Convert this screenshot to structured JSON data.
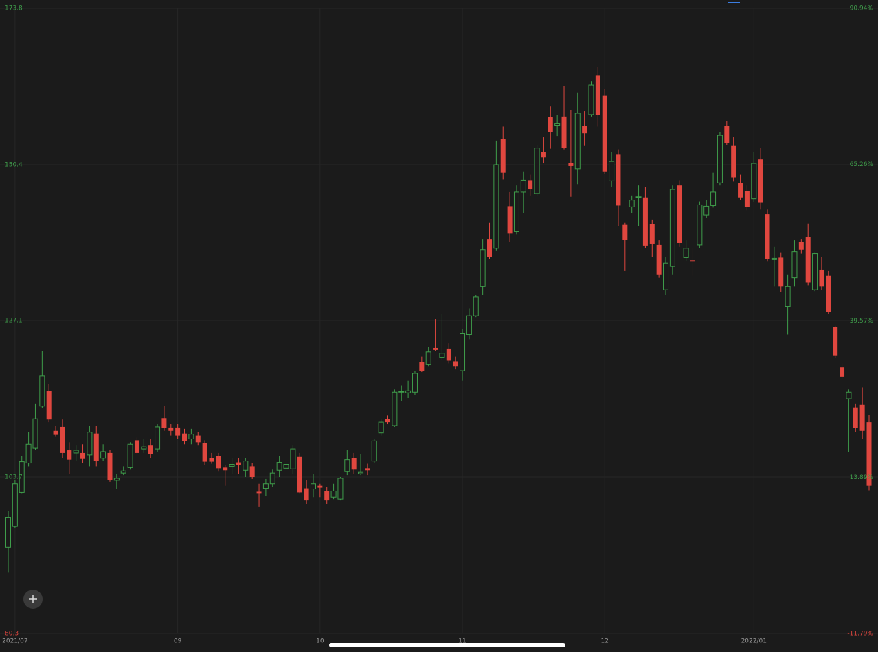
{
  "chart_data": {
    "type": "candlestick",
    "categories": [
      null,
      "2021/07",
      null,
      null,
      null,
      null,
      null,
      null,
      null,
      null,
      null,
      null,
      null,
      null,
      null,
      null,
      null,
      null,
      null,
      null,
      null,
      null,
      null,
      null,
      null,
      "09",
      null,
      null,
      null,
      null,
      null,
      null,
      null,
      null,
      null,
      null,
      null,
      null,
      null,
      null,
      null,
      null,
      null,
      null,
      null,
      null,
      "10",
      null,
      null,
      null,
      null,
      null,
      null,
      null,
      null,
      null,
      null,
      null,
      null,
      null,
      null,
      null,
      null,
      null,
      null,
      null,
      null,
      "11",
      null,
      null,
      null,
      null,
      null,
      null,
      null,
      null,
      null,
      null,
      null,
      null,
      null,
      null,
      null,
      null,
      null,
      null,
      null,
      null,
      "12",
      null,
      null,
      null,
      null,
      null,
      null,
      null,
      null,
      null,
      null,
      null,
      null,
      null,
      null,
      null,
      null,
      null,
      null,
      null,
      null,
      null,
      "2022/01",
      null,
      null,
      null,
      null,
      null,
      null,
      null,
      null,
      null,
      null,
      null,
      null,
      null,
      null,
      null,
      null,
      null
    ],
    "open": [
      93.2,
      96.3,
      101.4,
      105.8,
      108.0,
      114.3,
      116.6,
      110.6,
      111.2,
      107.7,
      107.3,
      107.3,
      107.0,
      110.2,
      106.5,
      107.3,
      103.2,
      104.3,
      105.1,
      109.2,
      107.9,
      108.4,
      107.9,
      112.5,
      111.1,
      111.1,
      110.2,
      109.4,
      109.9,
      108.8,
      106.5,
      106.8,
      105.1,
      105.3,
      105.9,
      104.7,
      105.3,
      101.5,
      102.0,
      102.7,
      104.7,
      105.0,
      104.9,
      106.7,
      102.0,
      101.9,
      102.4,
      101.6,
      100.7,
      100.4,
      104.5,
      106.5,
      104.2,
      105.0,
      106.1,
      110.3,
      112.4,
      111.4,
      116.4,
      116.3,
      116.4,
      120.9,
      120.5,
      123.0,
      121.6,
      122.9,
      121.0,
      119.6,
      125.0,
      127.8,
      132.2,
      139.3,
      137.9,
      154.3,
      144.2,
      140.4,
      146.3,
      148.1,
      146.1,
      152.3,
      157.5,
      156.3,
      157.6,
      150.7,
      149.8,
      156.2,
      157.9,
      163.7,
      160.7,
      148.0,
      151.9,
      141.4,
      144.1,
      145.5,
      145.5,
      141.5,
      138.4,
      131.7,
      135.2,
      147.3,
      136.5,
      136.1,
      138.4,
      142.9,
      144.3,
      147.7,
      156.2,
      153.2,
      147.7,
      146.5,
      145.3,
      151.2,
      143.0,
      136.2,
      136.5,
      129.2,
      133.5,
      138.9,
      139.6,
      131.7,
      134.7,
      133.8,
      126.1,
      120.1,
      115.4,
      114.1,
      114.5,
      111.9
    ],
    "high": [
      98.6,
      103.2,
      106.8,
      110.4,
      114.7,
      122.5,
      117.6,
      111.4,
      112.3,
      108.9,
      108.4,
      108.6,
      111.4,
      111.4,
      108.6,
      107.8,
      104.2,
      105.3,
      108.9,
      109.6,
      109.4,
      109.4,
      111.6,
      114.3,
      111.6,
      111.6,
      110.9,
      110.9,
      110.4,
      109.2,
      107.3,
      107.3,
      105.5,
      106.5,
      106.5,
      106.5,
      105.8,
      102.7,
      103.4,
      104.8,
      106.8,
      106.5,
      108.4,
      107.3,
      103.2,
      104.2,
      102.7,
      102.2,
      102.7,
      103.7,
      107.8,
      107.3,
      107.1,
      105.7,
      109.4,
      112.3,
      112.9,
      116.8,
      117.4,
      118.1,
      119.6,
      121.7,
      123.2,
      127.3,
      128.1,
      123.7,
      121.7,
      125.8,
      128.9,
      130.9,
      139.3,
      141.7,
      154.0,
      156.1,
      146.3,
      147.3,
      149.4,
      148.9,
      153.3,
      154.5,
      159.1,
      157.8,
      162.2,
      158.6,
      161.2,
      158.4,
      162.9,
      165.0,
      161.7,
      152.3,
      152.7,
      141.7,
      145.8,
      147.3,
      147.1,
      142.2,
      139.1,
      136.6,
      147.3,
      148.1,
      139.1,
      137.9,
      144.9,
      145.1,
      149.2,
      155.3,
      156.9,
      154.5,
      148.9,
      147.3,
      152.3,
      152.9,
      143.7,
      138.1,
      137.3,
      134.0,
      139.1,
      139.3,
      141.6,
      137.3,
      136.6,
      134.5,
      126.3,
      120.7,
      116.8,
      114.7,
      117.1,
      113.0
    ],
    "low": [
      89.4,
      96.0,
      101.2,
      105.3,
      107.8,
      114.0,
      111.9,
      109.7,
      106.5,
      104.2,
      106.1,
      105.8,
      105.3,
      105.3,
      106.1,
      103.0,
      101.9,
      104.0,
      104.8,
      107.1,
      107.3,
      106.5,
      107.5,
      110.6,
      109.9,
      109.4,
      108.6,
      108.6,
      108.4,
      105.5,
      105.7,
      104.5,
      102.4,
      104.2,
      104.2,
      103.7,
      103.4,
      99.3,
      100.9,
      102.2,
      103.7,
      104.5,
      104.2,
      101.2,
      99.6,
      100.7,
      100.7,
      99.7,
      100.4,
      100.2,
      104.0,
      104.2,
      104.0,
      104.0,
      105.8,
      109.9,
      111.6,
      111.2,
      115.0,
      115.5,
      116.0,
      119.4,
      120.2,
      122.5,
      121.2,
      120.7,
      119.8,
      118.1,
      124.3,
      127.6,
      130.9,
      136.3,
      137.6,
      148.2,
      138.9,
      140.0,
      143.2,
      145.8,
      145.7,
      150.6,
      152.8,
      154.7,
      152.7,
      145.6,
      147.5,
      153.2,
      157.6,
      156.1,
      149.0,
      147.1,
      141.2,
      134.5,
      143.2,
      141.2,
      137.9,
      136.6,
      133.5,
      130.9,
      134.0,
      138.1,
      136.0,
      133.8,
      137.9,
      142.4,
      144.0,
      147.3,
      153.3,
      147.9,
      145.1,
      143.6,
      144.8,
      143.7,
      135.9,
      132.2,
      131.4,
      125.0,
      132.2,
      137.1,
      132.4,
      131.5,
      131.7,
      128.1,
      121.5,
      118.4,
      107.5,
      110.4,
      109.4,
      101.7
    ],
    "close": [
      97.6,
      102.7,
      106.0,
      108.6,
      112.4,
      118.8,
      112.3,
      110.0,
      107.3,
      106.3,
      107.7,
      106.4,
      110.4,
      106.1,
      107.5,
      103.2,
      103.5,
      104.6,
      108.6,
      107.3,
      108.2,
      107.1,
      111.2,
      111.0,
      110.6,
      109.9,
      109.1,
      110.1,
      108.9,
      106.0,
      106.0,
      105.0,
      104.7,
      105.6,
      105.5,
      106.1,
      103.7,
      101.2,
      102.7,
      104.3,
      105.9,
      105.6,
      107.9,
      101.4,
      100.2,
      102.7,
      102.1,
      100.2,
      101.6,
      103.5,
      106.3,
      104.8,
      104.4,
      104.7,
      109.1,
      111.9,
      111.9,
      116.4,
      116.5,
      116.6,
      119.2,
      119.6,
      122.4,
      122.7,
      122.2,
      121.1,
      120.2,
      125.2,
      127.8,
      130.6,
      137.7,
      136.6,
      150.4,
      149.2,
      140.1,
      146.3,
      148.1,
      146.7,
      152.9,
      151.5,
      155.3,
      156.6,
      152.9,
      150.2,
      158.1,
      155.1,
      162.3,
      157.8,
      149.4,
      150.9,
      144.3,
      139.2,
      145.1,
      145.6,
      138.3,
      138.6,
      134.0,
      135.7,
      146.7,
      138.7,
      137.9,
      135.9,
      144.4,
      144.2,
      146.3,
      154.8,
      153.6,
      148.5,
      145.5,
      144.1,
      150.6,
      144.7,
      136.3,
      136.4,
      132.2,
      132.2,
      137.4,
      137.7,
      132.8,
      137.1,
      132.2,
      128.4,
      121.9,
      118.7,
      116.4,
      111.0,
      110.6,
      102.4
    ],
    "up_color": "#3f9e4b",
    "down_color": "#e0473f",
    "ylim": [
      80.3,
      173.8
    ],
    "yticks": [
      173.8,
      150.4,
      127.1,
      103.7,
      80.3
    ],
    "y2lim": [
      -11.79,
      90.94
    ],
    "y2ticks": [
      {
        "value": 90.94,
        "label": "90.94%"
      },
      {
        "value": 65.26,
        "label": "65.26%"
      },
      {
        "value": 39.57,
        "label": "39.57%"
      },
      {
        "value": 13.89,
        "label": "13.89%"
      },
      {
        "value": -11.79,
        "label": "-11.79%"
      }
    ],
    "grid": true
  }
}
